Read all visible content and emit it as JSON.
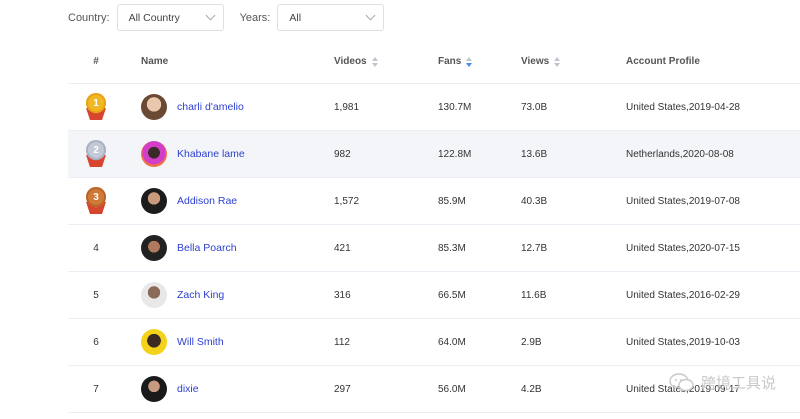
{
  "filters": {
    "country_label": "Country:",
    "country_value": "All Country",
    "years_label": "Years:",
    "years_value": "All"
  },
  "table": {
    "headers": {
      "rank": "#",
      "name": "Name",
      "videos": "Videos",
      "fans": "Fans",
      "views": "Views",
      "profile": "Account Profile"
    },
    "rows": [
      {
        "rank": "1",
        "name": "charli d'amelio",
        "videos": "1,981",
        "fans": "130.7M",
        "views": "73.0B",
        "profile": "United States,2019-04-28"
      },
      {
        "rank": "2",
        "name": "Khabane lame",
        "videos": "982",
        "fans": "122.8M",
        "views": "13.6B",
        "profile": "Netherlands,2020-08-08"
      },
      {
        "rank": "3",
        "name": "Addison Rae",
        "videos": "1,572",
        "fans": "85.9M",
        "views": "40.3B",
        "profile": "United States,2019-07-08"
      },
      {
        "rank": "4",
        "name": "Bella Poarch",
        "videos": "421",
        "fans": "85.3M",
        "views": "12.7B",
        "profile": "United States,2020-07-15"
      },
      {
        "rank": "5",
        "name": "Zach King",
        "videos": "316",
        "fans": "66.5M",
        "views": "11.6B",
        "profile": "United States,2016-02-29"
      },
      {
        "rank": "6",
        "name": "Will Smith",
        "videos": "112",
        "fans": "64.0M",
        "views": "2.9B",
        "profile": "United States,2019-10-03"
      },
      {
        "rank": "7",
        "name": "dixie",
        "videos": "297",
        "fans": "56.0M",
        "views": "4.2B",
        "profile": "United States,2019-09-17"
      }
    ]
  },
  "watermark": {
    "text": "跨境工具说",
    "icon": "wechat-icon"
  },
  "colors": {
    "link": "#2c3fd1",
    "highlight_row": "#f3f5f9",
    "sort_active": "#4a8af4"
  }
}
